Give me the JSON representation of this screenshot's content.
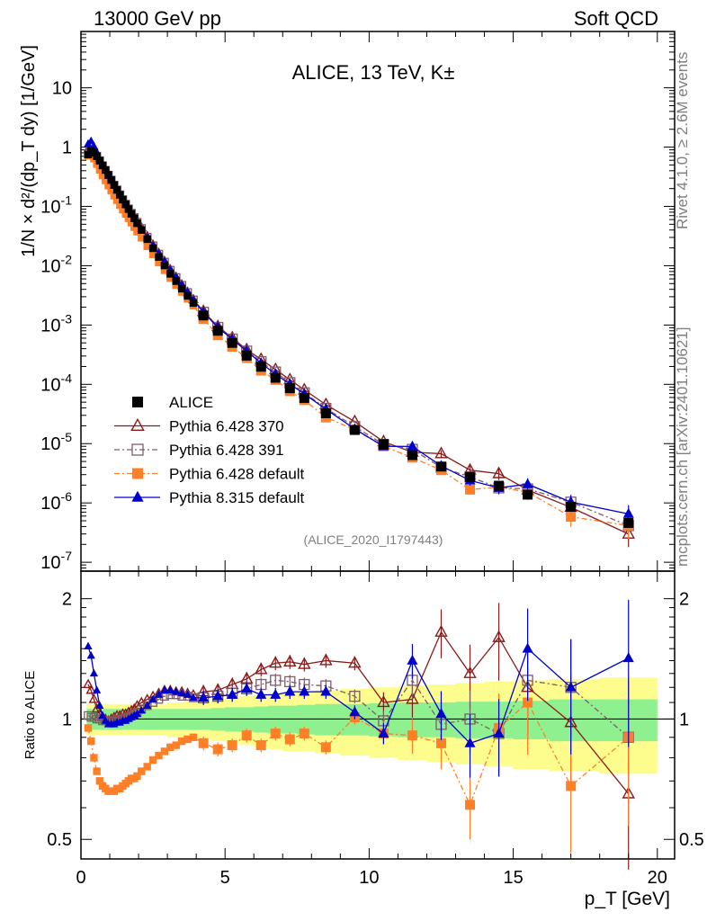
{
  "header": {
    "left": "13000 GeV pp",
    "right": "Soft QCD"
  },
  "side": {
    "rivet": "Rivet 4.1.0, ≥ 2.6M events",
    "mcplots": "mcplots.cern.ch [arXiv:2401.10621]"
  },
  "chart_data": {
    "type": "line",
    "title": "ALICE, 13 TeV, K±",
    "analysis_label": "(ALICE_2020_I1797443)",
    "ylabel_main": "1/N × d²/(dp_T dy) [1/GeV]",
    "ylabel_ratio": "Ratio to ALICE",
    "xlabel": "p_T [GeV]",
    "xlim": [
      0,
      20.6
    ],
    "ylim_main_log": [
      -7.15,
      1.95
    ],
    "ylim_ratio_log10": [
      -0.35,
      0.37
    ],
    "x_ticks": [
      "0",
      "5",
      "10",
      "15",
      "20"
    ],
    "y_ticks_main": [
      "10",
      "1",
      "10^-1",
      "10^-2",
      "10^-3",
      "10^-4",
      "10^-5",
      "10^-6",
      "10^-7"
    ],
    "y_ticks_ratio": [
      "2",
      "1",
      "0.5"
    ],
    "x": [
      0.25,
      0.35,
      0.45,
      0.55,
      0.65,
      0.75,
      0.85,
      0.95,
      1.05,
      1.15,
      1.25,
      1.35,
      1.45,
      1.55,
      1.65,
      1.75,
      1.85,
      1.95,
      2.1,
      2.3,
      2.5,
      2.7,
      2.9,
      3.1,
      3.3,
      3.5,
      3.7,
      3.9,
      4.25,
      4.75,
      5.25,
      5.75,
      6.25,
      6.75,
      7.25,
      7.75,
      8.5,
      9.5,
      10.5,
      11.5,
      12.5,
      13.5,
      14.5,
      15.5,
      17.0,
      19.0
    ],
    "series": [
      {
        "name": "ALICE",
        "color": "#000000",
        "marker": "square-filled",
        "values": [
          0.75,
          0.88,
          0.8,
          0.7,
          0.59,
          0.49,
          0.41,
          0.34,
          0.28,
          0.23,
          0.19,
          0.157,
          0.13,
          0.108,
          0.09,
          0.075,
          0.063,
          0.052,
          0.04,
          0.028,
          0.0197,
          0.014,
          0.0101,
          0.0073,
          0.0055,
          0.0041,
          0.0031,
          0.00235,
          0.00145,
          0.0008,
          0.0005,
          0.000305,
          0.000198,
          0.000129,
          8.6e-05,
          5.9e-05,
          3.25e-05,
          1.7e-05,
          9.8e-06,
          6.4e-06,
          4.1e-06,
          2.75e-06,
          1.95e-06,
          1.38e-06,
          8.6e-07,
          4.6e-07
        ]
      },
      {
        "name": "Pythia 6.428 370",
        "color": "#8b1a1a",
        "marker": "triangle-open",
        "ratio": [
          1.22,
          1.18,
          1.12,
          1.06,
          1.03,
          1.01,
          1.0,
          0.99,
          1.0,
          1.01,
          1.02,
          1.02,
          1.03,
          1.03,
          1.04,
          1.05,
          1.06,
          1.08,
          1.1,
          1.12,
          1.14,
          1.16,
          1.18,
          1.18,
          1.17,
          1.17,
          1.16,
          1.15,
          1.17,
          1.18,
          1.22,
          1.26,
          1.33,
          1.38,
          1.39,
          1.37,
          1.4,
          1.38,
          1.1,
          1.12,
          1.65,
          1.3,
          1.6,
          1.2,
          0.98,
          0.65
        ]
      },
      {
        "name": "Pythia 6.428 391",
        "color": "#7f5c6b",
        "marker": "square-open",
        "ratio": [
          1.02,
          1.01,
          1.01,
          1.0,
          1.0,
          0.99,
          0.99,
          0.99,
          0.99,
          0.99,
          1.0,
          1.0,
          1.0,
          1.01,
          1.01,
          1.02,
          1.03,
          1.04,
          1.06,
          1.08,
          1.1,
          1.12,
          1.14,
          1.15,
          1.15,
          1.14,
          1.14,
          1.13,
          1.13,
          1.14,
          1.16,
          1.19,
          1.22,
          1.25,
          1.24,
          1.22,
          1.21,
          1.14,
          0.99,
          1.25,
          0.97,
          1.0,
          0.92,
          1.25,
          1.2,
          0.9
        ]
      },
      {
        "name": "Pythia 6.428 default",
        "color": "#ff7f27",
        "marker": "square-filled",
        "ratio": [
          0.95,
          0.88,
          0.8,
          0.74,
          0.7,
          0.68,
          0.67,
          0.66,
          0.66,
          0.66,
          0.67,
          0.67,
          0.68,
          0.69,
          0.7,
          0.71,
          0.71,
          0.72,
          0.74,
          0.76,
          0.79,
          0.81,
          0.83,
          0.85,
          0.86,
          0.88,
          0.89,
          0.9,
          0.87,
          0.84,
          0.86,
          0.91,
          0.86,
          0.92,
          0.89,
          0.92,
          0.85,
          1.01,
          0.92,
          0.91,
          0.87,
          0.61,
          0.95,
          1.1,
          0.68,
          0.9
        ]
      },
      {
        "name": "Pythia 8.315 default",
        "color": "#0000cd",
        "marker": "triangle-filled",
        "ratio": [
          1.52,
          1.44,
          1.3,
          1.18,
          1.08,
          1.02,
          0.99,
          0.97,
          0.97,
          0.97,
          0.98,
          0.98,
          0.99,
          0.99,
          1.0,
          1.01,
          1.02,
          1.03,
          1.05,
          1.08,
          1.12,
          1.15,
          1.18,
          1.18,
          1.17,
          1.16,
          1.15,
          1.13,
          1.13,
          1.14,
          1.15,
          1.19,
          1.15,
          1.15,
          1.17,
          1.17,
          1.17,
          1.04,
          0.92,
          1.4,
          1.03,
          0.87,
          0.92,
          1.5,
          1.2,
          1.42
        ]
      }
    ],
    "band_green_halfwidth": [
      0.06,
      0.06,
      0.06,
      0.06,
      0.06,
      0.06,
      0.06,
      0.06,
      0.06,
      0.06,
      0.06,
      0.06,
      0.06,
      0.06,
      0.06,
      0.06,
      0.06,
      0.06,
      0.06,
      0.06,
      0.06,
      0.06,
      0.06,
      0.06,
      0.06,
      0.06,
      0.06,
      0.06,
      0.06,
      0.065,
      0.07,
      0.07,
      0.075,
      0.08,
      0.08,
      0.085,
      0.09,
      0.09,
      0.095,
      0.1,
      0.1,
      0.105,
      0.105,
      0.11,
      0.12,
      0.12
    ],
    "band_yellow_halfwidth": [
      0.09,
      0.09,
      0.09,
      0.09,
      0.09,
      0.09,
      0.09,
      0.09,
      0.09,
      0.09,
      0.09,
      0.09,
      0.09,
      0.09,
      0.09,
      0.09,
      0.09,
      0.09,
      0.09,
      0.09,
      0.09,
      0.09,
      0.09,
      0.1,
      0.1,
      0.1,
      0.11,
      0.11,
      0.11,
      0.12,
      0.13,
      0.14,
      0.15,
      0.16,
      0.17,
      0.17,
      0.18,
      0.19,
      0.2,
      0.21,
      0.22,
      0.23,
      0.24,
      0.25,
      0.26,
      0.27
    ]
  }
}
